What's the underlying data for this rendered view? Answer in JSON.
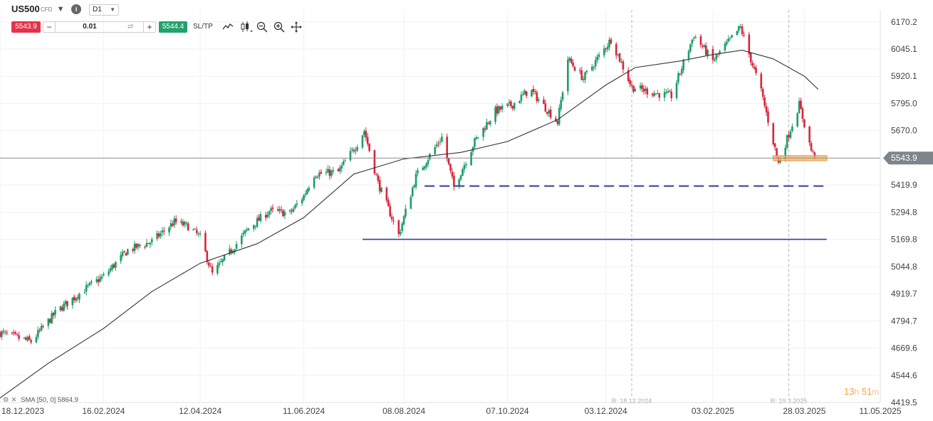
{
  "toolbar": {
    "symbol": "US500",
    "symbol_type": "CFD",
    "timeframe": "D1",
    "sell_price": "5543.9",
    "buy_price": "5544.4",
    "volume": "0.01",
    "minus_label": "−",
    "plus_label": "+",
    "sltp_label": "SL/TP"
  },
  "indicator": {
    "label": "SMA [50, 0]",
    "value": "5864.9"
  },
  "timer": {
    "hours": "13",
    "hours_unit": "h",
    "minutes": "51",
    "minutes_unit": "m"
  },
  "colors": {
    "up": "#1e9c68",
    "down": "#d7253a",
    "sma": "#333333",
    "support": "#2f3f9e",
    "zone": "#f4b066",
    "price_tag": "#7d858b"
  },
  "chart_data": {
    "type": "candlestick",
    "instrument": "US500",
    "timeframe": "D1",
    "x_ticks": [
      "18.12.2023",
      "16.02.2024",
      "12.04.2024",
      "11.06.2024",
      "08.08.2024",
      "07.10.2024",
      "03.12.2024",
      "03.02.2025",
      "28.03.2025",
      "11.05.2025"
    ],
    "xlim": [
      "2023-12-18",
      "2025-05-11"
    ],
    "ylim": [
      4419.5,
      6225
    ],
    "y_ticks": [
      "6170.2",
      "6045.1",
      "5920.1",
      "5795.0",
      "5670.0",
      "5419.9",
      "5294.8",
      "5169.8",
      "5044.8",
      "4919.7",
      "4794.7",
      "4669.6",
      "4544.6",
      "4419.5"
    ],
    "current_price": "5543.9",
    "close_path": [
      [
        "2023-12-18",
        4740
      ],
      [
        "2024-01-05",
        4700
      ],
      [
        "2024-01-20",
        4840
      ],
      [
        "2024-02-05",
        4940
      ],
      [
        "2024-02-16",
        5000
      ],
      [
        "2024-03-01",
        5120
      ],
      [
        "2024-03-15",
        5160
      ],
      [
        "2024-03-28",
        5250
      ],
      [
        "2024-04-05",
        5230
      ],
      [
        "2024-04-12",
        5180
      ],
      [
        "2024-04-19",
        5010
      ],
      [
        "2024-04-26",
        5080
      ],
      [
        "2024-05-10",
        5220
      ],
      [
        "2024-05-22",
        5300
      ],
      [
        "2024-06-03",
        5290
      ],
      [
        "2024-06-11",
        5370
      ],
      [
        "2024-06-17",
        5470
      ],
      [
        "2024-07-01",
        5480
      ],
      [
        "2024-07-12",
        5610
      ],
      [
        "2024-07-16",
        5670
      ],
      [
        "2024-07-24",
        5430
      ],
      [
        "2024-08-05",
        5190
      ],
      [
        "2024-08-15",
        5460
      ],
      [
        "2024-08-30",
        5640
      ],
      [
        "2024-09-06",
        5410
      ],
      [
        "2024-09-18",
        5620
      ],
      [
        "2024-09-30",
        5760
      ],
      [
        "2024-10-10",
        5790
      ],
      [
        "2024-10-20",
        5860
      ],
      [
        "2024-11-05",
        5710
      ],
      [
        "2024-11-11",
        6000
      ],
      [
        "2024-11-20",
        5910
      ],
      [
        "2024-12-06",
        6090
      ],
      [
        "2024-12-18",
        5870
      ],
      [
        "2025-01-02",
        5840
      ],
      [
        "2025-01-10",
        5830
      ],
      [
        "2025-01-23",
        6110
      ],
      [
        "2025-02-03",
        5990
      ],
      [
        "2025-02-19",
        6145
      ],
      [
        "2025-03-03",
        5850
      ],
      [
        "2025-03-13",
        5520
      ],
      [
        "2025-03-25",
        5790
      ],
      [
        "2025-04-01",
        5580
      ],
      [
        "2025-04-03",
        5543.9
      ]
    ],
    "series": [
      {
        "name": "SMA [50, 0]",
        "points": [
          [
            "2023-12-18",
            4440
          ],
          [
            "2024-01-15",
            4600
          ],
          [
            "2024-02-16",
            4760
          ],
          [
            "2024-03-15",
            4930
          ],
          [
            "2024-04-12",
            5060
          ],
          [
            "2024-05-15",
            5150
          ],
          [
            "2024-06-11",
            5270
          ],
          [
            "2024-07-10",
            5470
          ],
          [
            "2024-08-08",
            5540
          ],
          [
            "2024-09-10",
            5570
          ],
          [
            "2024-10-07",
            5620
          ],
          [
            "2024-11-05",
            5720
          ],
          [
            "2024-12-03",
            5880
          ],
          [
            "2024-12-20",
            5960
          ],
          [
            "2025-01-15",
            5990
          ],
          [
            "2025-02-03",
            6020
          ],
          [
            "2025-02-20",
            6040
          ],
          [
            "2025-03-10",
            6000
          ],
          [
            "2025-03-28",
            5920
          ],
          [
            "2025-04-05",
            5860
          ]
        ]
      }
    ],
    "levels": [
      {
        "style": "dashed",
        "value": 5415,
        "from": "2024-08-20",
        "to": "2025-04-10"
      },
      {
        "style": "solid",
        "value": 5170,
        "from": "2024-07-15",
        "to": "2025-04-10"
      }
    ],
    "zone": {
      "from": "2025-03-10",
      "to": "2025-04-10",
      "y_low": 5532,
      "y_high": 5555
    },
    "vertical_markers": [
      {
        "date": "2024-12-18",
        "label": "R: 18.12.2024"
      },
      {
        "date": "2025-03-19",
        "label": "R: 19.3.2025"
      }
    ]
  }
}
